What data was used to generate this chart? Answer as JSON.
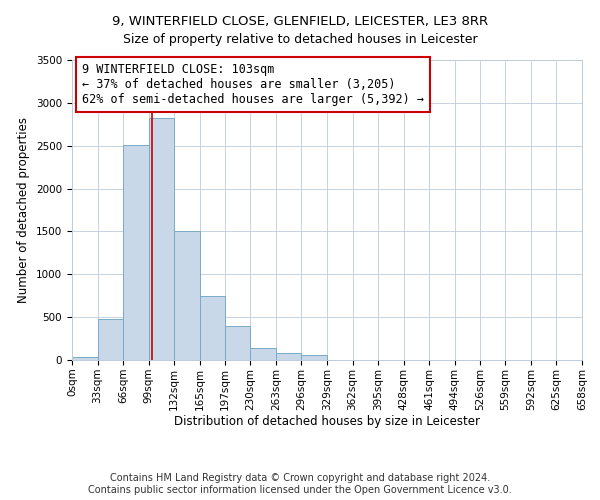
{
  "title_line1": "9, WINTERFIELD CLOSE, GLENFIELD, LEICESTER, LE3 8RR",
  "title_line2": "Size of property relative to detached houses in Leicester",
  "xlabel": "Distribution of detached houses by size in Leicester",
  "ylabel": "Number of detached properties",
  "bin_edges": [
    0,
    33,
    66,
    99,
    132,
    165,
    197,
    230,
    263,
    296,
    329,
    362,
    395,
    428,
    461,
    494,
    526,
    559,
    592,
    625,
    658
  ],
  "bin_labels": [
    "0sqm",
    "33sqm",
    "66sqm",
    "99sqm",
    "132sqm",
    "165sqm",
    "197sqm",
    "230sqm",
    "263sqm",
    "296sqm",
    "329sqm",
    "362sqm",
    "395sqm",
    "428sqm",
    "461sqm",
    "494sqm",
    "526sqm",
    "559sqm",
    "592sqm",
    "625sqm",
    "658sqm"
  ],
  "bar_heights": [
    30,
    480,
    2510,
    2820,
    1510,
    745,
    395,
    145,
    80,
    55,
    0,
    0,
    0,
    0,
    0,
    0,
    0,
    0,
    0,
    0
  ],
  "bar_color": "#c8d8e8",
  "bar_edgecolor": "#7aaac8",
  "property_size": 103,
  "marker_line_color": "#cc0000",
  "annotation_text": "9 WINTERFIELD CLOSE: 103sqm\n← 37% of detached houses are smaller (3,205)\n62% of semi-detached houses are larger (5,392) →",
  "annotation_box_edgecolor": "#cc0000",
  "annotation_box_facecolor": "#ffffff",
  "ylim": [
    0,
    3500
  ],
  "yticks": [
    0,
    500,
    1000,
    1500,
    2000,
    2500,
    3000,
    3500
  ],
  "footer_line1": "Contains HM Land Registry data © Crown copyright and database right 2024.",
  "footer_line2": "Contains public sector information licensed under the Open Government Licence v3.0.",
  "background_color": "#ffffff",
  "grid_color": "#c0ccd8",
  "title_fontsize": 9.5,
  "subtitle_fontsize": 9,
  "axis_label_fontsize": 8.5,
  "tick_fontsize": 7.5,
  "annotation_fontsize": 8.5,
  "footer_fontsize": 7
}
